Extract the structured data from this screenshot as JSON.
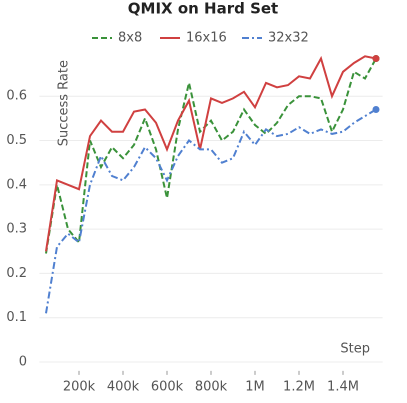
{
  "chart_data": {
    "type": "line",
    "title": "QMIX on Hard Set",
    "x_label": "Step",
    "y_label": "Success Rate",
    "x": [
      50000,
      100000,
      150000,
      200000,
      250000,
      300000,
      350000,
      400000,
      450000,
      500000,
      550000,
      600000,
      650000,
      700000,
      750000,
      800000,
      850000,
      900000,
      950000,
      1000000,
      1050000,
      1100000,
      1150000,
      1200000,
      1250000,
      1300000,
      1350000,
      1400000,
      1450000,
      1500000,
      1550000
    ],
    "series": [
      {
        "name": "8x8",
        "color": "#3a923a",
        "style": "dashed",
        "values": [
          0.245,
          0.4,
          0.3,
          0.27,
          0.5,
          0.44,
          0.485,
          0.46,
          0.49,
          0.55,
          0.48,
          0.37,
          0.525,
          0.63,
          0.52,
          0.545,
          0.5,
          0.52,
          0.57,
          0.535,
          0.515,
          0.54,
          0.58,
          0.6,
          0.6,
          0.595,
          0.52,
          0.57,
          0.655,
          0.64,
          0.685
        ]
      },
      {
        "name": "16x16",
        "color": "#d04040",
        "style": "solid",
        "values": [
          0.25,
          0.41,
          0.4,
          0.39,
          0.51,
          0.545,
          0.52,
          0.52,
          0.565,
          0.57,
          0.54,
          0.48,
          0.545,
          0.59,
          0.48,
          0.595,
          0.585,
          0.595,
          0.61,
          0.575,
          0.63,
          0.62,
          0.625,
          0.645,
          0.64,
          0.685,
          0.6,
          0.655,
          0.675,
          0.69,
          0.685
        ]
      },
      {
        "name": "32x32",
        "color": "#5080d0",
        "style": "dashdot",
        "values": [
          0.11,
          0.26,
          0.29,
          0.27,
          0.4,
          0.465,
          0.42,
          0.41,
          0.44,
          0.485,
          0.46,
          0.41,
          0.465,
          0.5,
          0.48,
          0.48,
          0.45,
          0.46,
          0.52,
          0.49,
          0.525,
          0.51,
          0.515,
          0.53,
          0.515,
          0.525,
          0.515,
          0.52,
          0.54,
          0.555,
          0.57
        ]
      }
    ],
    "xlim": [
      20000,
      1580000
    ],
    "ylim": [
      -0.02,
      0.75
    ],
    "xticks": [
      {
        "value": 200000,
        "label": "200k"
      },
      {
        "value": 400000,
        "label": "400k"
      },
      {
        "value": 600000,
        "label": "600k"
      },
      {
        "value": 800000,
        "label": "800k"
      },
      {
        "value": 1000000,
        "label": "1M"
      },
      {
        "value": 1200000,
        "label": "1.2M"
      },
      {
        "value": 1400000,
        "label": "1.4M"
      }
    ],
    "yticks": [
      0,
      0.1,
      0.2,
      0.3,
      0.4,
      0.5,
      0.6
    ],
    "grid": true,
    "legend": "top",
    "end_markers": true
  }
}
